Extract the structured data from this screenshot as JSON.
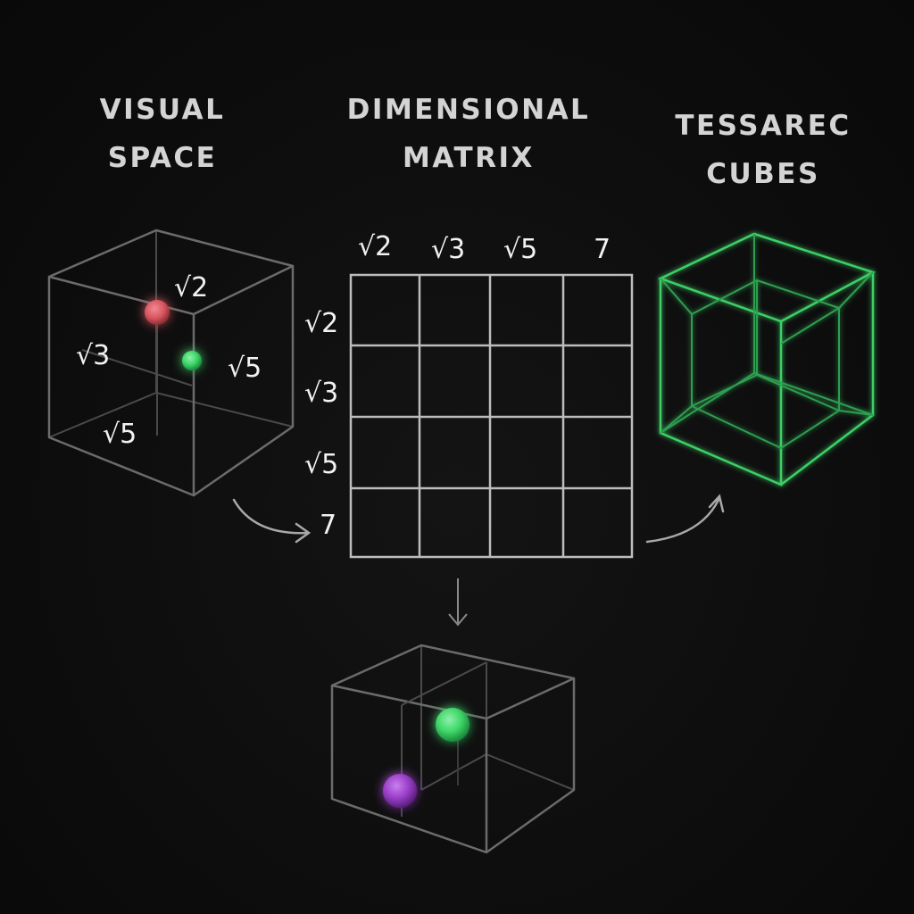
{
  "headings": {
    "visual_space": "VISUAL\nSPACE",
    "dimensional_matrix": "DIMENSIONAL\nMATRIX",
    "tessarec_cubes": "TESSAREC\nCUBES"
  },
  "visual_cube_labels": {
    "top": "√2",
    "left": "√3",
    "right": "√5",
    "bottom": "√5"
  },
  "matrix": {
    "column_headers": [
      "√2",
      "√3",
      "√5",
      "7"
    ],
    "row_headers": [
      "√2",
      "√3",
      "√5",
      "7"
    ]
  },
  "colors": {
    "background": "#0d0d0d",
    "heading": "#d4d4d4",
    "red_sphere": "#d9545f",
    "green_sphere": "#3ed76a",
    "purple_sphere": "#9b40c9",
    "tesseract": "#3ecf66"
  }
}
